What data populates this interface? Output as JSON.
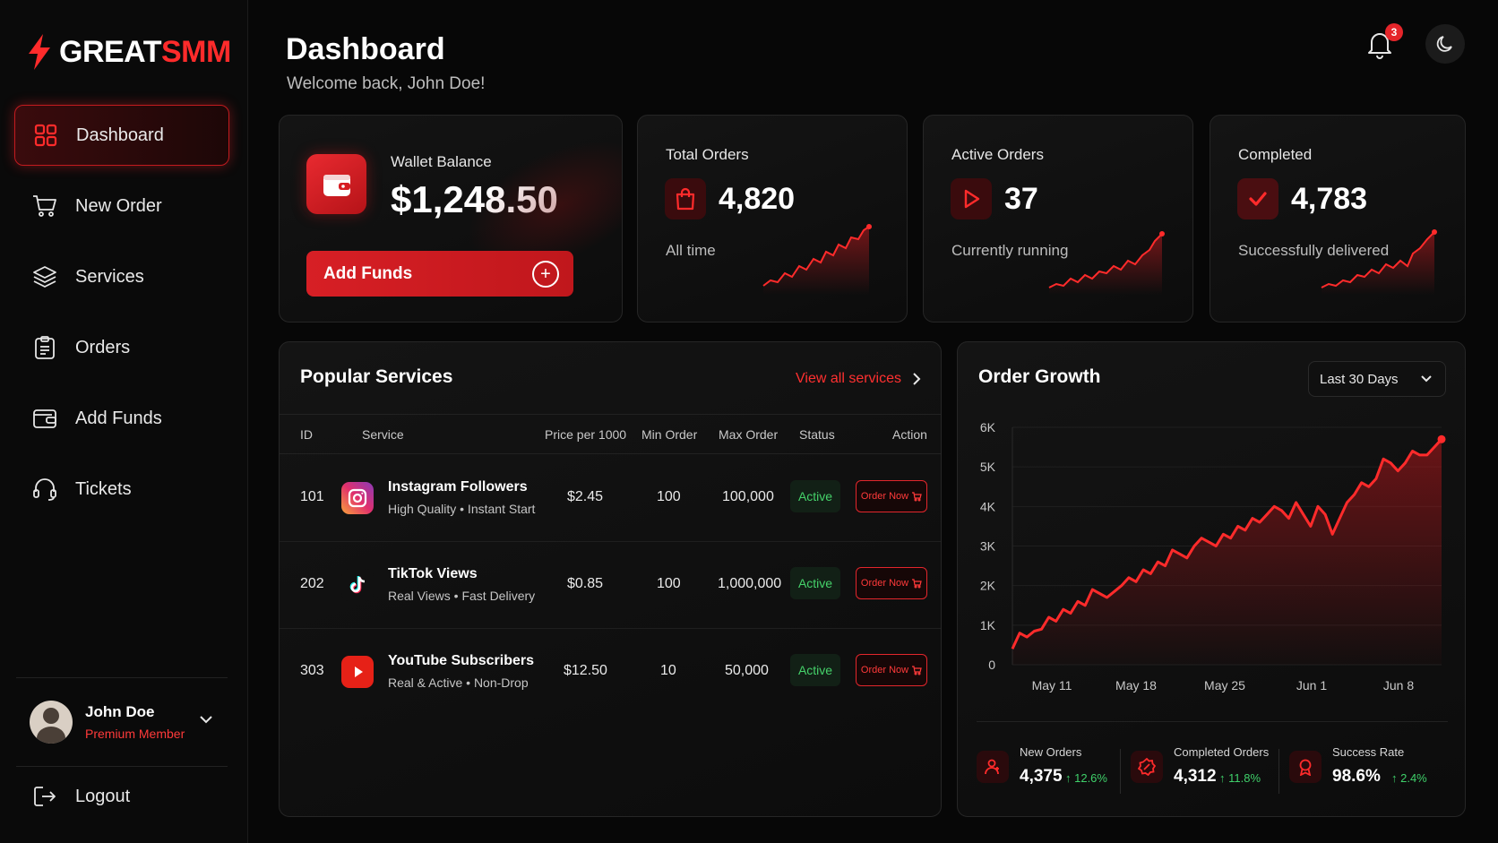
{
  "brand": {
    "name_part1": "GREAT",
    "name_part2": "SMM",
    "accent": "#ff2b2b"
  },
  "sidebar": {
    "items": [
      {
        "label": "Dashboard",
        "icon": "grid-icon",
        "active": true
      },
      {
        "label": "New Order",
        "icon": "cart-icon"
      },
      {
        "label": "Services",
        "icon": "layers-icon"
      },
      {
        "label": "Orders",
        "icon": "clipboard-icon"
      },
      {
        "label": "Add Funds",
        "icon": "wallet-icon"
      },
      {
        "label": "Tickets",
        "icon": "headset-icon"
      }
    ],
    "user": {
      "name": "John Doe",
      "role": "Premium Member"
    },
    "logout_label": "Logout"
  },
  "header": {
    "title": "Dashboard",
    "subtitle": "Welcome back, John Doe!",
    "notification_count": "3"
  },
  "wallet": {
    "label": "Wallet Balance",
    "value": "$1,248.50",
    "button_label": "Add Funds"
  },
  "stats": [
    {
      "title": "Total Orders",
      "value": "4,820",
      "sub": "All time",
      "icon": "bag-icon"
    },
    {
      "title": "Active Orders",
      "value": "37",
      "sub": "Currently running",
      "icon": "play-icon"
    },
    {
      "title": "Completed",
      "value": "4,783",
      "sub": "Successfully delivered",
      "icon": "check-icon"
    }
  ],
  "services": {
    "title": "Popular Services",
    "view_all_label": "View all services",
    "columns": [
      "ID",
      "Service",
      "Price per 1000",
      "Min Order",
      "Max Order",
      "Status",
      "Action"
    ],
    "rows": [
      {
        "id": "101",
        "name": "Instagram Followers",
        "desc": "High Quality • Instant Start",
        "price": "$2.45",
        "min": "100",
        "max": "100,000",
        "status": "Active",
        "action": "Order Now",
        "logo": "instagram-icon"
      },
      {
        "id": "202",
        "name": "TikTok Views",
        "desc": "Real Views • Fast Delivery",
        "price": "$0.85",
        "min": "100",
        "max": "1,000,000",
        "status": "Active",
        "action": "Order Now",
        "logo": "tiktok-icon"
      },
      {
        "id": "303",
        "name": "YouTube Subscribers",
        "desc": "Real & Active • Non-Drop",
        "price": "$12.50",
        "min": "10",
        "max": "50,000",
        "status": "Active",
        "action": "Order Now",
        "logo": "youtube-icon"
      }
    ]
  },
  "growth": {
    "title": "Order Growth",
    "range_label": "Last 30 Days",
    "kpis": [
      {
        "label": "New Orders",
        "value": "4,375",
        "delta": "↑ 12.6%"
      },
      {
        "label": "Completed Orders",
        "value": "4,312",
        "delta": "↑ 11.8%"
      },
      {
        "label": "Success Rate",
        "value": "98.6%",
        "delta": "↑ 2.4%"
      }
    ]
  },
  "chart_data": {
    "type": "area",
    "title": "Order Growth",
    "xlabel": "",
    "ylabel": "",
    "x_ticks": [
      "May 11",
      "May 18",
      "May 25",
      "Jun 1",
      "Jun 8"
    ],
    "y_ticks": [
      "0",
      "1K",
      "2K",
      "3K",
      "4K",
      "5K",
      "6K"
    ],
    "ylim": [
      0,
      6000
    ],
    "grid": true,
    "series": [
      {
        "values": [
          400,
          800,
          700,
          850,
          900,
          1200,
          1100,
          1400,
          1300,
          1600,
          1500,
          1900,
          1800,
          1700,
          1850,
          2000,
          2200,
          2100,
          2400,
          2300,
          2600,
          2500,
          2900,
          2800,
          2700,
          3000,
          3200,
          3100,
          3000,
          3300,
          3200,
          3500,
          3400,
          3700,
          3600,
          3800,
          4000,
          3900,
          3700,
          4100,
          3800,
          3500,
          4000,
          3800,
          3300,
          3700,
          4100,
          4300,
          4600,
          4500,
          4700,
          5200,
          5100,
          4900,
          5100,
          5400,
          5300,
          5300,
          5500,
          5700
        ]
      }
    ]
  },
  "colors": {
    "accent": "#e5252a",
    "active_status": "#45d26a",
    "background": "#070707"
  }
}
